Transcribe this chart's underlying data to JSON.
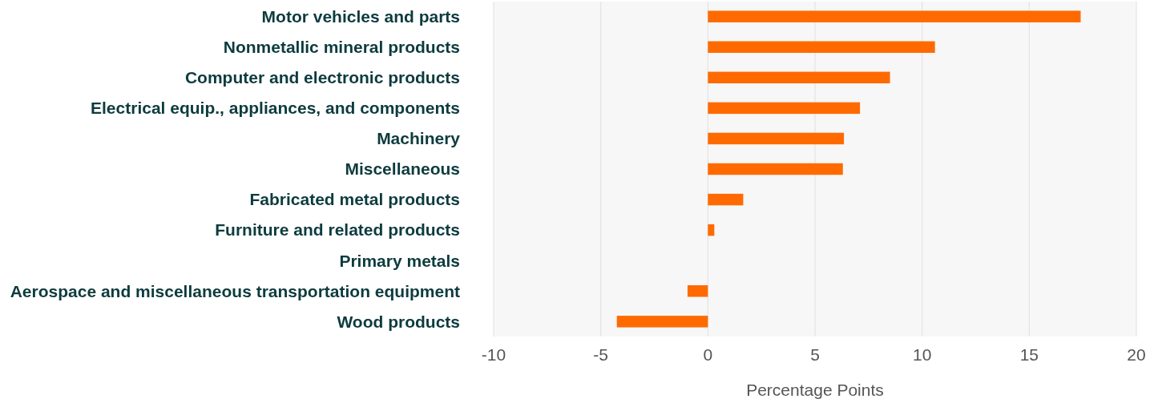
{
  "chart_data": {
    "type": "bar",
    "orientation": "horizontal",
    "xlabel": "Percentage Points",
    "categories": [
      "Motor vehicles and parts",
      "Nonmetallic mineral products",
      "Computer and electronic products",
      "Electrical equip., appliances, and components",
      "Machinery",
      "Miscellaneous",
      "Fabricated metal products",
      "Furniture and related products",
      "Primary metals",
      "Aerospace and miscellaneous transportation equipment",
      "Wood products"
    ],
    "values": [
      17.4,
      10.6,
      8.5,
      7.1,
      6.35,
      6.3,
      1.65,
      0.3,
      0,
      -0.95,
      -4.25
    ],
    "color": "#ff6a00",
    "xlim": [
      -10,
      20
    ],
    "xticks": [
      -10,
      -5,
      0,
      5,
      10,
      15,
      20
    ],
    "grid": "x"
  }
}
